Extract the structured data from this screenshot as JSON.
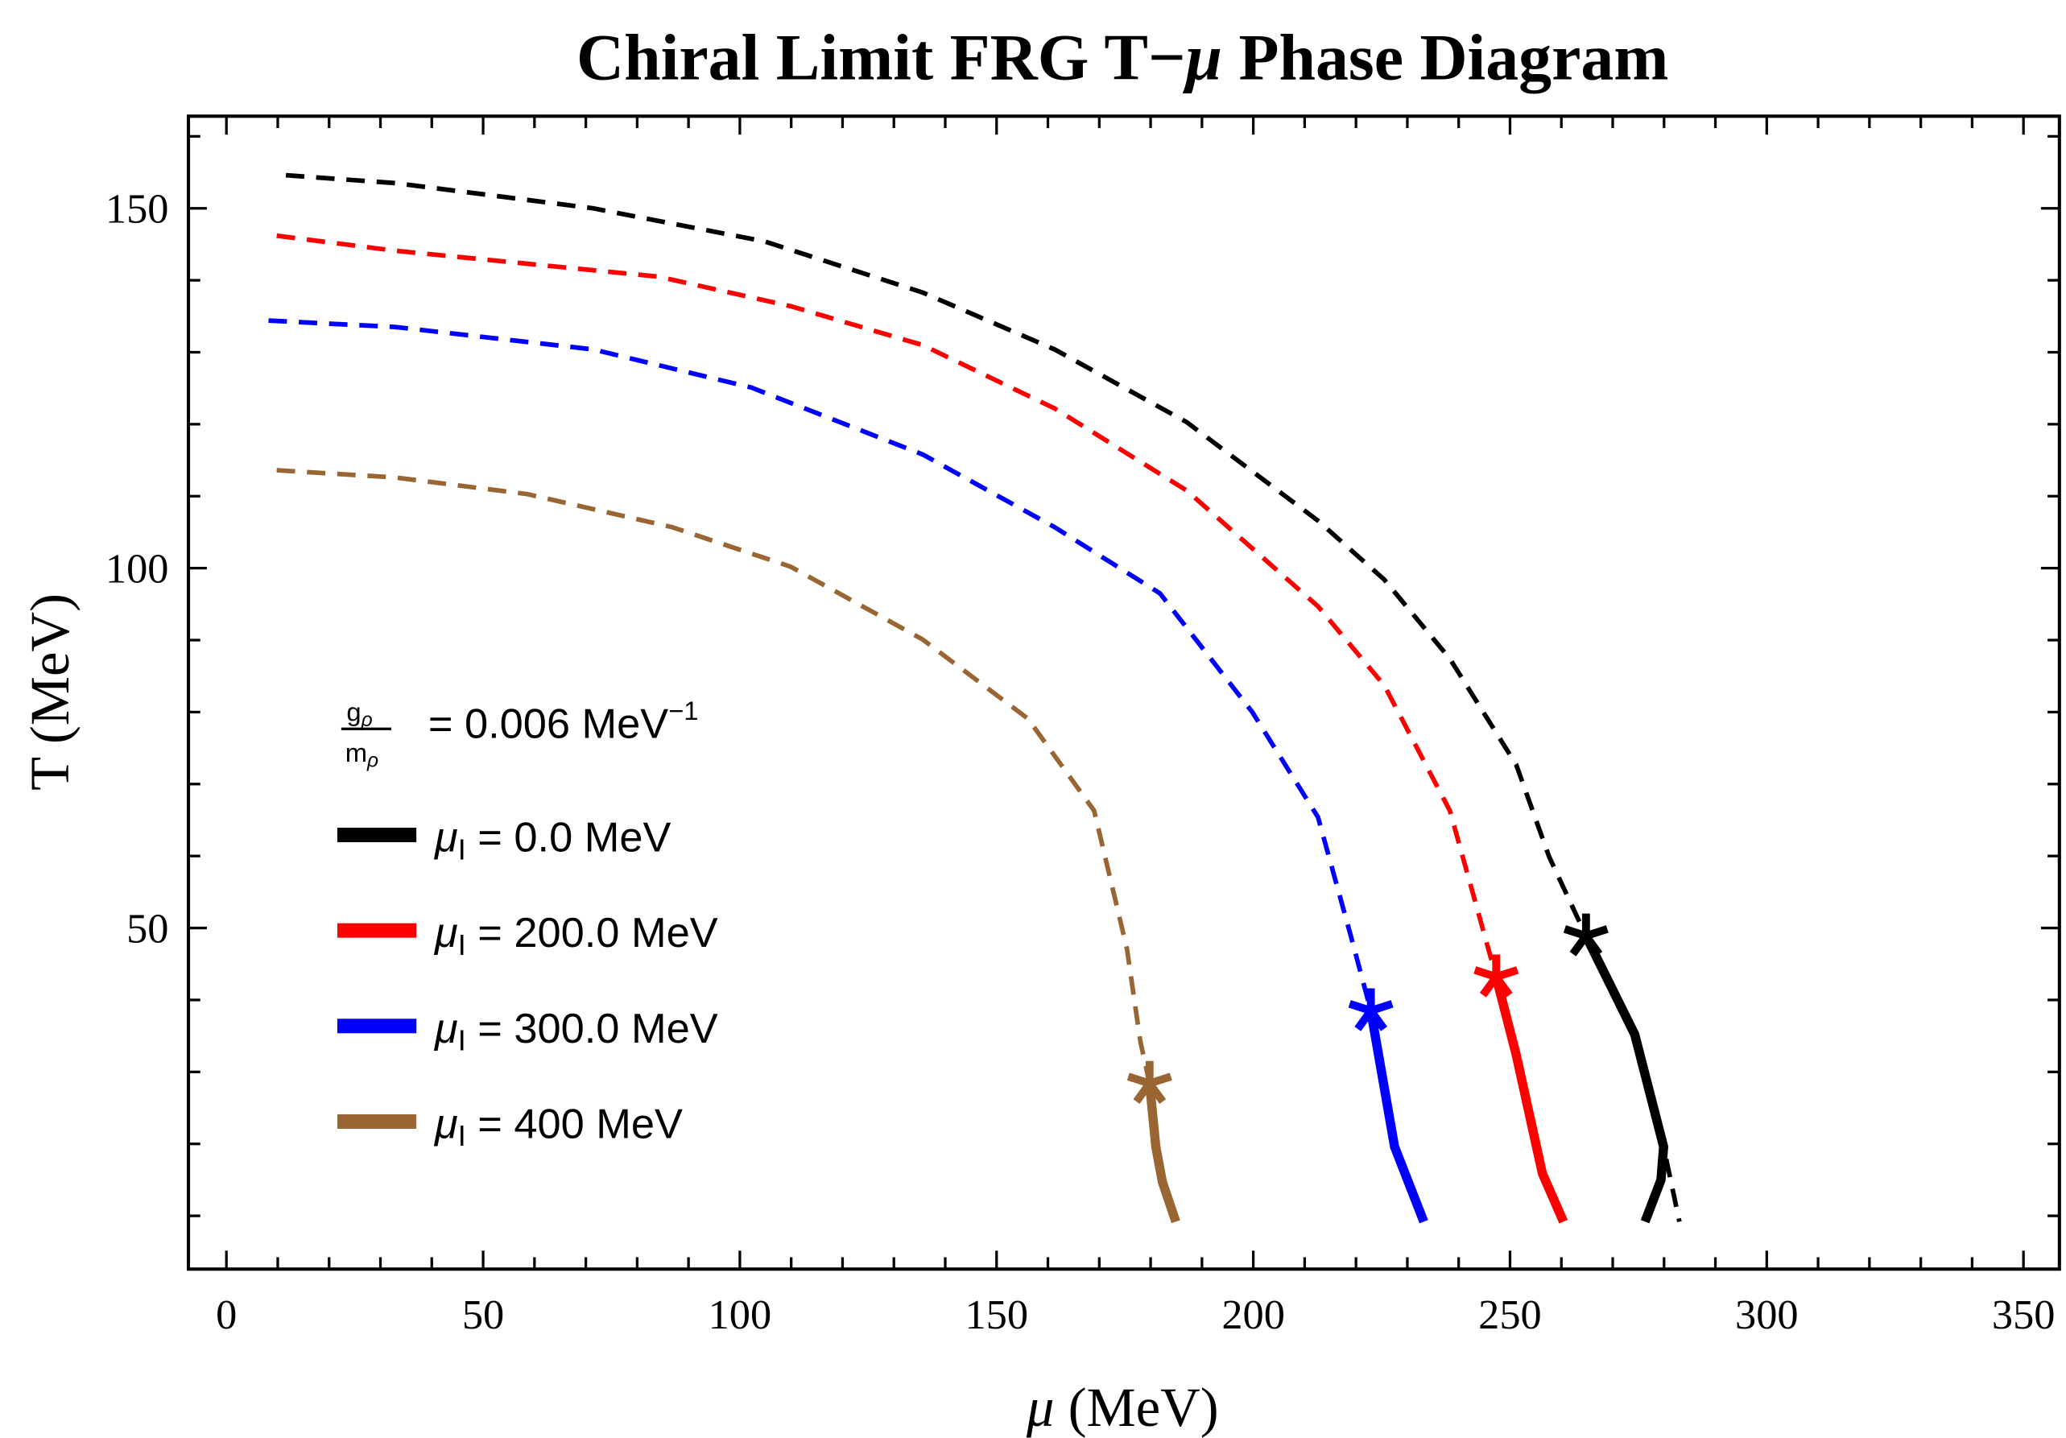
{
  "chart_data": {
    "type": "line",
    "title": "Chiral Limit FRG T−μ Phase Diagram",
    "title_parts": {
      "prefix": "Chiral Limit FRG T−",
      "mu": "μ",
      "suffix": " Phase Diagram"
    },
    "xlabel": "μ (MeV)",
    "xlabel_parts": {
      "mu": "μ",
      "rest": " (MeV)"
    },
    "ylabel": "T (MeV)",
    "xlim": [
      -7.4,
      357
    ],
    "ylim": [
      2.6,
      162.8
    ],
    "x_ticks": [
      0,
      50,
      100,
      150,
      200,
      250,
      300,
      350
    ],
    "x_tick_labels": [
      "0",
      "50",
      "100",
      "150",
      "200",
      "250",
      "300",
      "350"
    ],
    "y_ticks": [
      50,
      100,
      150
    ],
    "y_tick_labels": [
      "50",
      "100",
      "150"
    ],
    "minor_tick_step": 10,
    "grid": false,
    "legend_placement": "lower-left",
    "legend_header": {
      "numerator": "g",
      "num_sub": "ρ",
      "denominator": "m",
      "den_sub": "ρ",
      "text": "= 0.006 MeV",
      "sup": "−1"
    },
    "series": [
      {
        "name": "μ_I = 0.0 MeV",
        "label_value": "= 0.0 MeV",
        "color": "#000000",
        "dashed": [
          [
            11.6,
            154.6
          ],
          [
            32.9,
            153.5
          ],
          [
            71.4,
            150
          ],
          [
            104.8,
            145.4
          ],
          [
            135.6,
            138.3
          ],
          [
            161.3,
            130.4
          ],
          [
            187,
            120.3
          ],
          [
            212.6,
            106.6
          ],
          [
            225.5,
            98.4
          ],
          [
            238.3,
            87.4
          ],
          [
            251.2,
            72.7
          ],
          [
            257.6,
            59.9
          ],
          [
            264.8,
            48.9
          ],
          [
            274.3,
            35.2
          ],
          [
            279.9,
            19.6
          ],
          [
            283,
            9.2
          ]
        ],
        "critical_point": [
          264.8,
          48.9
        ],
        "solid": [
          [
            264.8,
            48.9
          ],
          [
            274.3,
            35.2
          ],
          [
            279.9,
            19.6
          ],
          [
            279.4,
            15
          ],
          [
            276.3,
            9.2
          ]
        ]
      },
      {
        "name": "μ_I = 200.0 MeV",
        "label_value": "= 200.0 MeV",
        "color": "#ff0000",
        "dashed": [
          [
            9.8,
            146.2
          ],
          [
            32.9,
            144.1
          ],
          [
            84.2,
            140.5
          ],
          [
            109.9,
            136.4
          ],
          [
            135.6,
            131
          ],
          [
            161.3,
            122.2
          ],
          [
            187,
            110.8
          ],
          [
            212.6,
            94.7
          ],
          [
            225.5,
            83.7
          ],
          [
            238.3,
            66.3
          ],
          [
            247.3,
            43.2
          ]
        ],
        "critical_point": [
          247.3,
          43.2
        ],
        "solid": [
          [
            247.3,
            43.2
          ],
          [
            251.2,
            32.4
          ],
          [
            256.3,
            15.9
          ],
          [
            260.4,
            9.2
          ]
        ]
      },
      {
        "name": "μ_I = 300.0 MeV",
        "label_value": "= 300.0 MeV",
        "color": "#0000ff",
        "dashed": [
          [
            8.2,
            134.4
          ],
          [
            32.9,
            133.5
          ],
          [
            71.4,
            130.4
          ],
          [
            102.2,
            125.1
          ],
          [
            135.6,
            115.8
          ],
          [
            161.3,
            105.7
          ],
          [
            181.8,
            96.5
          ],
          [
            199.8,
            80
          ],
          [
            212.6,
            65.4
          ],
          [
            219,
            48.9
          ],
          [
            222.9,
            38.5
          ]
        ],
        "critical_point": [
          222.9,
          38.5
        ],
        "solid": [
          [
            222.9,
            38.5
          ],
          [
            227.5,
            19.6
          ],
          [
            233.2,
            9.2
          ]
        ]
      },
      {
        "name": "μ_I = 400 MeV",
        "label_value": "= 400 MeV",
        "color": "#996633",
        "dashed": [
          [
            9.8,
            113.6
          ],
          [
            32.9,
            112.6
          ],
          [
            58.6,
            110.3
          ],
          [
            86.8,
            105.7
          ],
          [
            109.9,
            100.2
          ],
          [
            135.6,
            90.1
          ],
          [
            156.1,
            79.1
          ],
          [
            169,
            66.3
          ],
          [
            175.4,
            47.1
          ],
          [
            178,
            34.2
          ],
          [
            179.8,
            28.4
          ]
        ],
        "critical_point": [
          179.8,
          28.4
        ],
        "solid": [
          [
            179.8,
            28.4
          ],
          [
            181,
            19.6
          ],
          [
            182.3,
            14.7
          ],
          [
            184.9,
            9.2
          ]
        ]
      }
    ]
  }
}
